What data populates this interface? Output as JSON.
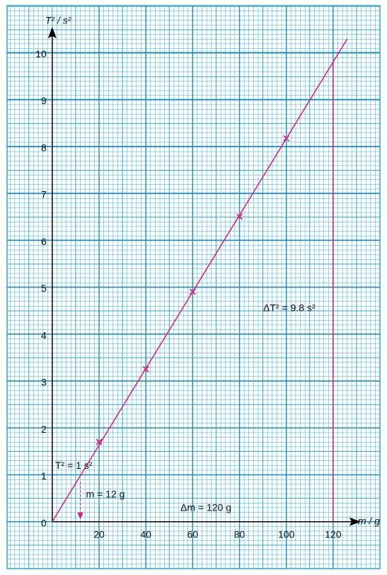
{
  "chart_data": {
    "type": "scatter",
    "x_label": "m / g",
    "y_label": "T² / s²",
    "x": [
      20,
      40,
      60,
      80,
      100
    ],
    "series": [
      {
        "color": "#d81b7f",
        "values": [
          1.7,
          3.25,
          4.9,
          6.5,
          8.17
        ]
      }
    ],
    "fit_line": {
      "x": [
        0,
        126
      ],
      "y": [
        0,
        10.29
      ]
    },
    "reading": {
      "x": 12,
      "y": 1
    },
    "delta": {
      "x": 120,
      "y": 9.8
    },
    "annotations": [
      "T² = 1 s²",
      "m = 12 g",
      "Δm = 120 g",
      "ΔT² = 9.8 s²"
    ],
    "xlim": [
      -19.3,
      140
    ],
    "ylim": [
      -1,
      11
    ],
    "xticks": [
      20,
      40,
      60,
      80,
      100,
      120
    ],
    "yticks": [
      0,
      1,
      2,
      3,
      4,
      5,
      6,
      7,
      8,
      9,
      10
    ],
    "grid": true
  }
}
